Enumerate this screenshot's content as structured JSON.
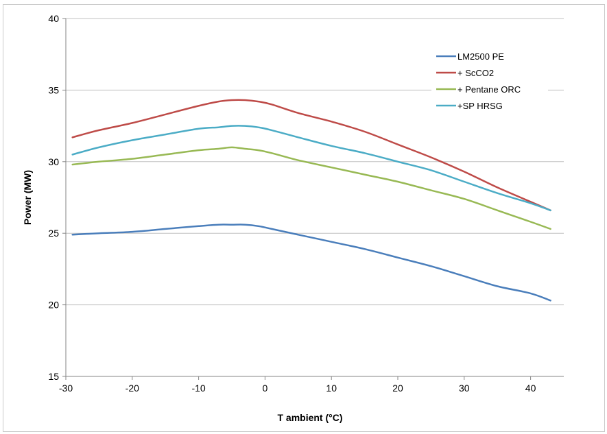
{
  "chart_data": {
    "type": "line",
    "title": "",
    "xlabel": "T ambient (°C)",
    "ylabel": "Power (MW)",
    "xlim": [
      -30,
      45
    ],
    "ylim": [
      15,
      40
    ],
    "xticks": [
      -30,
      -20,
      -10,
      0,
      10,
      20,
      30,
      40
    ],
    "yticks": [
      15,
      20,
      25,
      30,
      35,
      40
    ],
    "grid": "horizontal",
    "legend_position": "top-right",
    "series": [
      {
        "name": "LM2500 PE",
        "color": "#4a7ebb",
        "x": [
          -29,
          -25,
          -20,
          -15,
          -10,
          -7,
          -5,
          -3,
          -1,
          1,
          5,
          10,
          15,
          20,
          25,
          30,
          35,
          40,
          43
        ],
        "y": [
          24.9,
          25.0,
          25.1,
          25.3,
          25.5,
          25.6,
          25.6,
          25.6,
          25.5,
          25.3,
          24.9,
          24.4,
          23.9,
          23.3,
          22.7,
          22.0,
          21.3,
          20.8,
          20.3
        ]
      },
      {
        "name": "+ ScCO2",
        "color": "#be4b48",
        "x": [
          -29,
          -25,
          -20,
          -15,
          -10,
          -7,
          -5,
          -3,
          -1,
          1,
          5,
          10,
          15,
          20,
          25,
          30,
          35,
          40,
          43
        ],
        "y": [
          31.7,
          32.2,
          32.7,
          33.3,
          33.9,
          34.2,
          34.3,
          34.3,
          34.2,
          34.0,
          33.4,
          32.8,
          32.1,
          31.2,
          30.3,
          29.3,
          28.2,
          27.2,
          26.6
        ]
      },
      {
        "name": "+ Pentane ORC",
        "color": "#98b954",
        "x": [
          -29,
          -25,
          -20,
          -15,
          -10,
          -7,
          -5,
          -3,
          -1,
          1,
          5,
          10,
          15,
          20,
          25,
          30,
          35,
          40,
          43
        ],
        "y": [
          29.8,
          30.0,
          30.2,
          30.5,
          30.8,
          30.9,
          31.0,
          30.9,
          30.8,
          30.6,
          30.1,
          29.6,
          29.1,
          28.6,
          28.0,
          27.4,
          26.6,
          25.8,
          25.3
        ]
      },
      {
        "name": "+SP HRSG",
        "color": "#4bacc6",
        "x": [
          -29,
          -25,
          -20,
          -15,
          -10,
          -7,
          -5,
          -3,
          -1,
          1,
          5,
          10,
          15,
          20,
          25,
          30,
          35,
          40,
          43
        ],
        "y": [
          30.5,
          31.0,
          31.5,
          31.9,
          32.3,
          32.4,
          32.5,
          32.5,
          32.4,
          32.2,
          31.7,
          31.1,
          30.6,
          30.0,
          29.4,
          28.6,
          27.8,
          27.1,
          26.6
        ]
      }
    ]
  }
}
